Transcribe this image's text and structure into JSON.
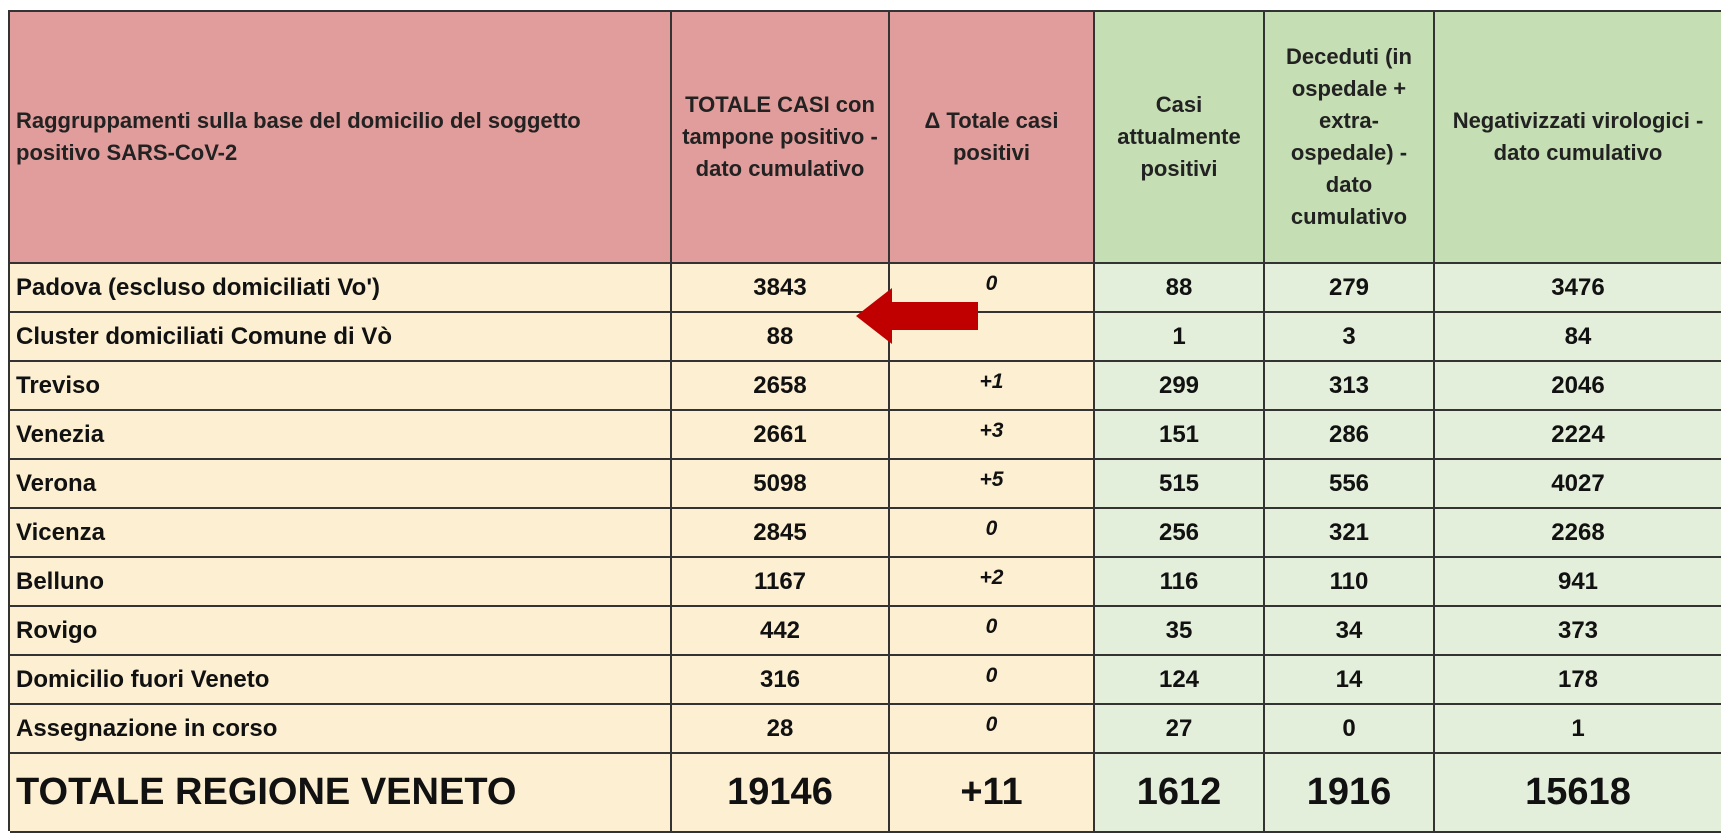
{
  "table": {
    "header": [
      "Raggruppamenti sulla base del domicilio del soggetto positivo SARS-CoV-2",
      "TOTALE CASI con tampone positivo -dato cumulativo",
      "Δ Totale casi positivi",
      "Casi attualmente positivi",
      "Deceduti (in ospedale + extra-ospedale) - dato cumulativo",
      "Negativizzati virologici - dato cumulativo"
    ],
    "rows": [
      [
        "Padova (escluso domiciliati Vo')",
        "3843",
        "0",
        "88",
        "279",
        "3476"
      ],
      [
        "Cluster domiciliati Comune di Vò",
        "88",
        null,
        "1",
        "3",
        "84"
      ],
      [
        "Treviso",
        "2658",
        "+1",
        "299",
        "313",
        "2046"
      ],
      [
        "Venezia",
        "2661",
        "+3",
        "151",
        "286",
        "2224"
      ],
      [
        "Verona",
        "5098",
        "+5",
        "515",
        "556",
        "4027"
      ],
      [
        "Vicenza",
        "2845",
        "0",
        "256",
        "321",
        "2268"
      ],
      [
        "Belluno",
        "1167",
        "+2",
        "116",
        "110",
        "941"
      ],
      [
        "Rovigo",
        "442",
        "0",
        "35",
        "34",
        "373"
      ],
      [
        "Domicilio fuori Veneto",
        "316",
        "0",
        "124",
        "14",
        "178"
      ],
      [
        "Assegnazione in corso",
        "28",
        "0",
        "27",
        "0",
        "1"
      ]
    ],
    "total": [
      "TOTALE REGIONE VENETO",
      "19146",
      "+11",
      "1612",
      "1916",
      "15618"
    ]
  }
}
